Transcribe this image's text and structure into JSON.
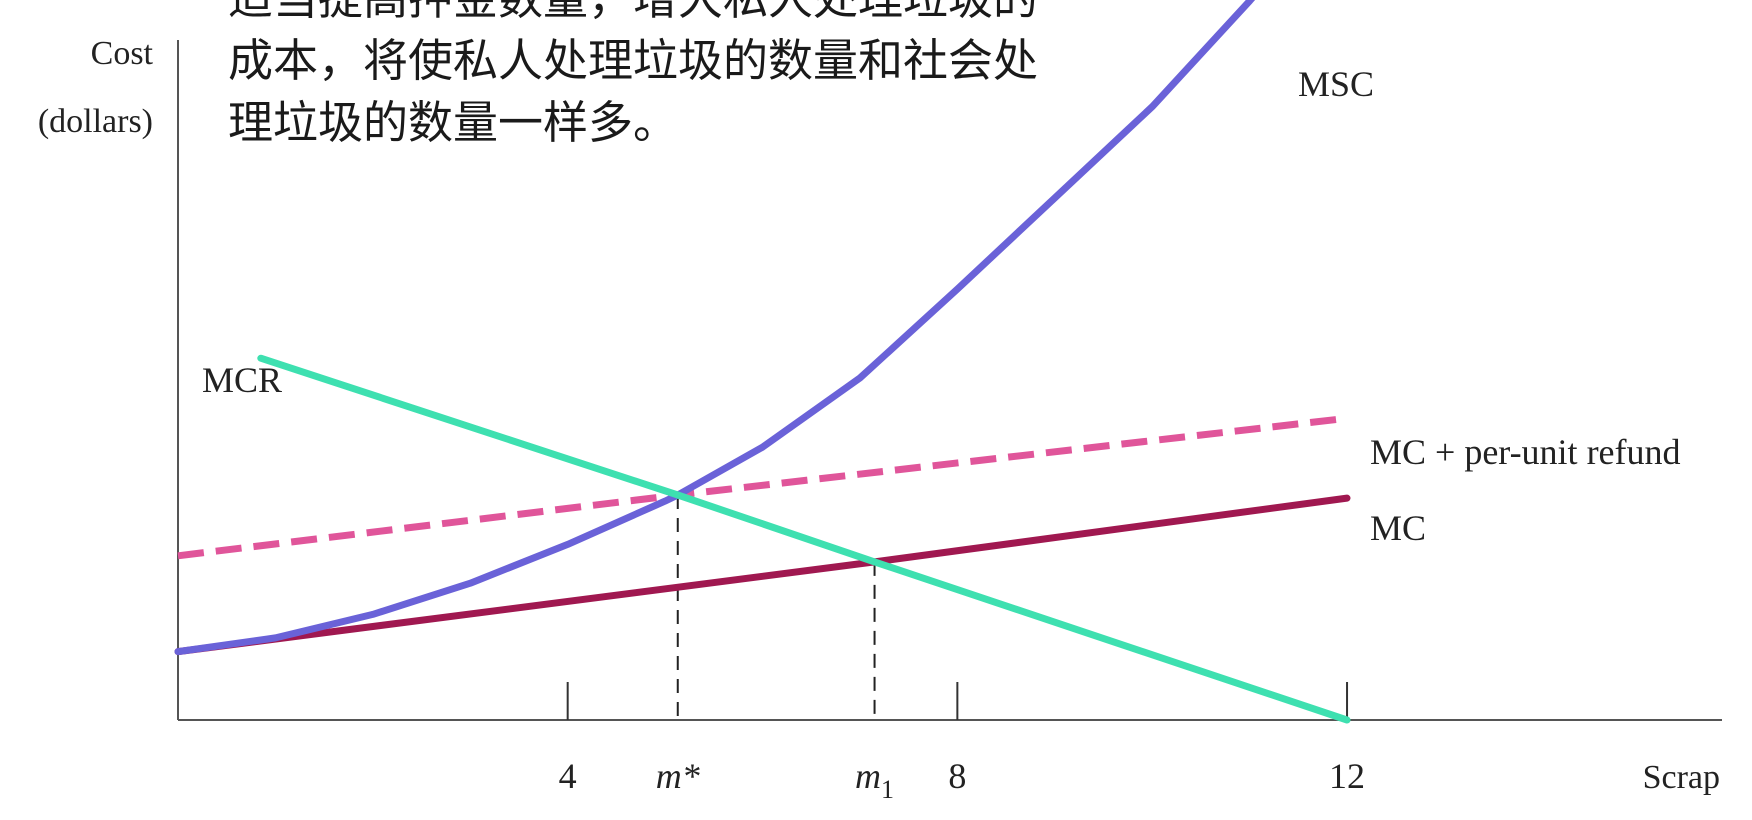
{
  "note_lines": [
    "适当提高押金数量，增大私人处理垃圾的",
    "成本，将使私人处理垃圾的数量和社会处",
    "理垃圾的数量一样多。"
  ],
  "chart_data": {
    "type": "line",
    "ylabel_lines": [
      "Cost",
      "(dollars)"
    ],
    "xlabel": "Scrap",
    "xlim": [
      0,
      14
    ],
    "ylim": [
      0,
      100
    ],
    "x_ticks": [
      {
        "x": 4,
        "label": "4",
        "italic": false
      },
      {
        "x": 5.13,
        "label": "m*",
        "italic": true
      },
      {
        "x": 7.15,
        "label": "m",
        "sub": "1",
        "italic": true
      },
      {
        "x": 8,
        "label": "8",
        "italic": false
      },
      {
        "x": 12,
        "label": "12",
        "italic": false
      }
    ],
    "dashed_drops": [
      {
        "x": 5.13,
        "y": 29.6
      },
      {
        "x": 7.15,
        "y": 20.8
      }
    ],
    "series": [
      {
        "name": "MSC",
        "color": "#6a62d8",
        "style": "solid",
        "x": [
          0.0,
          1.0,
          2.0,
          3.0,
          4.0,
          5.0,
          5.13,
          6.0,
          7.0,
          8.0,
          9.0,
          10.0,
          11.0,
          11.55
        ],
        "y": [
          9.0,
          10.8,
          13.9,
          18.0,
          23.1,
          28.8,
          29.6,
          35.9,
          45.0,
          56.7,
          68.7,
          80.7,
          94.6,
          102.8
        ]
      },
      {
        "name": "MCR",
        "color": "#3ee0b0",
        "style": "solid",
        "x": [
          0.85,
          5.13,
          7.15,
          12.0
        ],
        "y": [
          47.6,
          29.6,
          20.8,
          0.0
        ]
      },
      {
        "name": "MC + per-unit refund",
        "color": "#e0559a",
        "style": "dashed",
        "x": [
          0.0,
          5.13,
          12.0
        ],
        "y": [
          21.6,
          29.6,
          39.7
        ]
      },
      {
        "name": "MC",
        "color": "#a01850",
        "style": "solid",
        "x": [
          0.0,
          7.15,
          12.0
        ],
        "y": [
          9.0,
          20.8,
          29.2
        ]
      }
    ]
  }
}
